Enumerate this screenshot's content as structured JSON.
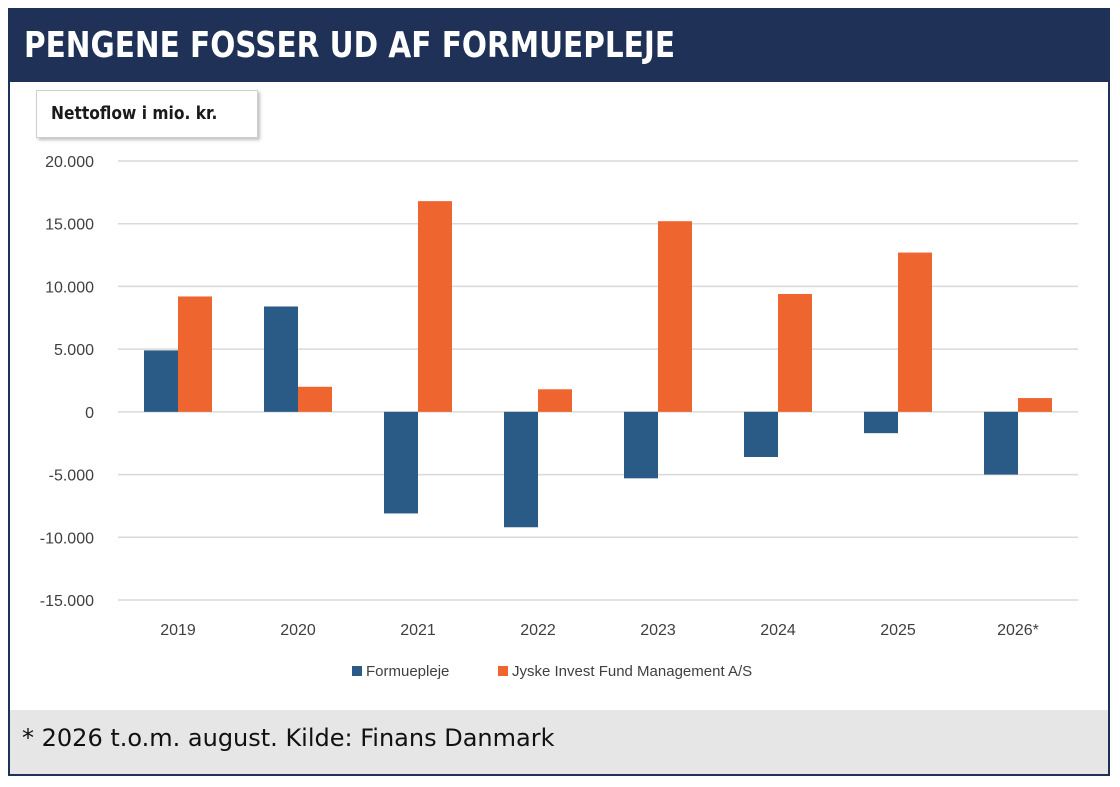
{
  "header": {
    "title": "PENGENE FOSSER UD AF FORMUEPLEJE"
  },
  "footer": {
    "note": "* 2026 t.o.m. august.  Kilde: Finans Danmark"
  },
  "colors": {
    "header_bg": "#1f3157",
    "formuepleje": "#2a5a86",
    "jyske": "#ef6530"
  },
  "chart_data": {
    "type": "bar",
    "title": "",
    "unit_label": "Nettoflow i mio. kr.",
    "xlabel": "",
    "ylabel": "",
    "categories": [
      "2019",
      "2020",
      "2021",
      "2022",
      "2023",
      "2024",
      "2025",
      "2026*"
    ],
    "series": [
      {
        "name": "Formuepleje",
        "color": "#2a5a86",
        "values": [
          4900,
          8400,
          -8100,
          -9200,
          -5300,
          -3600,
          -1700,
          -5000
        ]
      },
      {
        "name": "Jyske Invest Fund Management A/S",
        "color": "#ef6530",
        "values": [
          9200,
          2000,
          16800,
          1800,
          15200,
          9400,
          12700,
          1100
        ]
      }
    ],
    "ylim": [
      -15000,
      20000
    ],
    "yticks": [
      20000,
      15000,
      10000,
      5000,
      0,
      -5000,
      -10000,
      -15000
    ],
    "ytick_labels": [
      "20.000",
      "15.000",
      "10.000",
      "5.000",
      "0",
      "-5.000",
      "-10.000",
      "-15.000"
    ],
    "grid": true,
    "legend": "bottom-center"
  }
}
